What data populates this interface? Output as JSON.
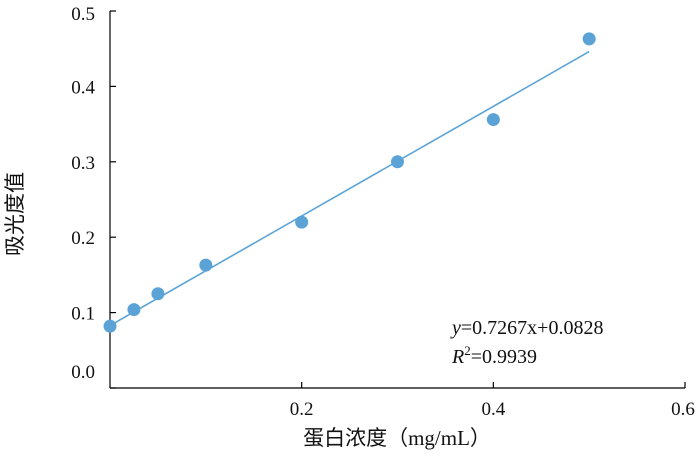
{
  "chart_data": {
    "type": "scatter",
    "xlabel": "蛋白浓度（mg/mL）",
    "ylabel": "吸光度值",
    "xlim": [
      0,
      0.6
    ],
    "ylim": [
      0,
      0.5
    ],
    "x_ticks": [
      0.2,
      0.4,
      0.6
    ],
    "x_tick_labels": [
      "0.2",
      "0.4",
      "0.6"
    ],
    "y_ticks": [
      0.0,
      0.1,
      0.2,
      0.3,
      0.4,
      0.5
    ],
    "y_tick_labels": [
      "0.0",
      "0.1",
      "0.2",
      "0.3",
      "0.4",
      "0.5"
    ],
    "grid": false,
    "points": [
      {
        "x": 0.0,
        "y": 0.082
      },
      {
        "x": 0.025,
        "y": 0.104
      },
      {
        "x": 0.05,
        "y": 0.125
      },
      {
        "x": 0.1,
        "y": 0.163
      },
      {
        "x": 0.2,
        "y": 0.22
      },
      {
        "x": 0.3,
        "y": 0.3
      },
      {
        "x": 0.4,
        "y": 0.356
      },
      {
        "x": 0.5,
        "y": 0.463
      }
    ],
    "fit_line": {
      "slope": 0.7267,
      "intercept": 0.0828,
      "x_range": [
        0,
        0.5
      ]
    },
    "point_color": "#5ba3d6",
    "line_color": "#5ba3d6",
    "annotation": {
      "equation_var": "y",
      "equation_rest": "=0.7267x+0.0828",
      "r2_var": "R",
      "r2_sup": "2",
      "r2_rest": "=0.9939"
    }
  }
}
